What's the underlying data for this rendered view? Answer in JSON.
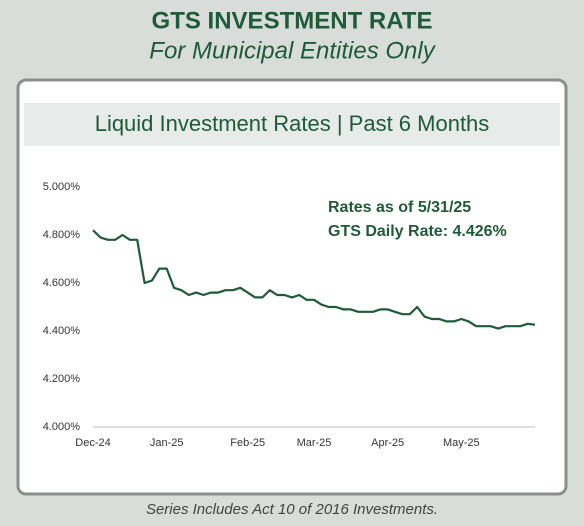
{
  "header": {
    "title": "GTS INVESTMENT RATE",
    "subtitle": "For Municipal Entities Only"
  },
  "chart_data": {
    "type": "line",
    "title": "Liquid Investment Rates | Past 6 Months",
    "annotations": [
      "Rates as of 5/31/25",
      "GTS Daily Rate: 4.426%"
    ],
    "categories": [
      "Dec-24",
      null,
      null,
      null,
      null,
      null,
      null,
      null,
      null,
      null,
      "Jan-25",
      null,
      null,
      null,
      null,
      null,
      null,
      null,
      null,
      null,
      null,
      "Feb-25",
      null,
      null,
      null,
      null,
      null,
      null,
      null,
      null,
      "Mar-25",
      null,
      null,
      null,
      null,
      null,
      null,
      null,
      null,
      null,
      "Apr-25",
      null,
      null,
      null,
      null,
      null,
      null,
      null,
      null,
      null,
      "May-25",
      null,
      null,
      null,
      null,
      null,
      null,
      null,
      null,
      null,
      null
    ],
    "series": [
      {
        "name": "GTS Daily Rate",
        "color": "#1f5a3a",
        "values": [
          4.82,
          4.79,
          4.78,
          4.78,
          4.8,
          4.78,
          4.78,
          4.6,
          4.61,
          4.66,
          4.66,
          4.58,
          4.57,
          4.55,
          4.56,
          4.55,
          4.56,
          4.56,
          4.57,
          4.57,
          4.58,
          4.56,
          4.54,
          4.54,
          4.57,
          4.55,
          4.55,
          4.54,
          4.55,
          4.53,
          4.53,
          4.51,
          4.5,
          4.5,
          4.49,
          4.49,
          4.48,
          4.48,
          4.48,
          4.49,
          4.49,
          4.48,
          4.47,
          4.47,
          4.5,
          4.46,
          4.45,
          4.45,
          4.44,
          4.44,
          4.45,
          4.44,
          4.42,
          4.42,
          4.42,
          4.41,
          4.42,
          4.42,
          4.42,
          4.43,
          4.426
        ]
      }
    ],
    "ylim": [
      4.0,
      5.0
    ],
    "yticks": [
      {
        "value": 4.0,
        "label": "4.000%"
      },
      {
        "value": 4.2,
        "label": "4.200%"
      },
      {
        "value": 4.4,
        "label": "4.400%"
      },
      {
        "value": 4.6,
        "label": "4.600%"
      },
      {
        "value": 4.8,
        "label": "4.800%"
      },
      {
        "value": 5.0,
        "label": "5.000%"
      }
    ],
    "grid": false
  },
  "footer": {
    "note": "Series Includes Act 10 of 2016 Investments."
  }
}
